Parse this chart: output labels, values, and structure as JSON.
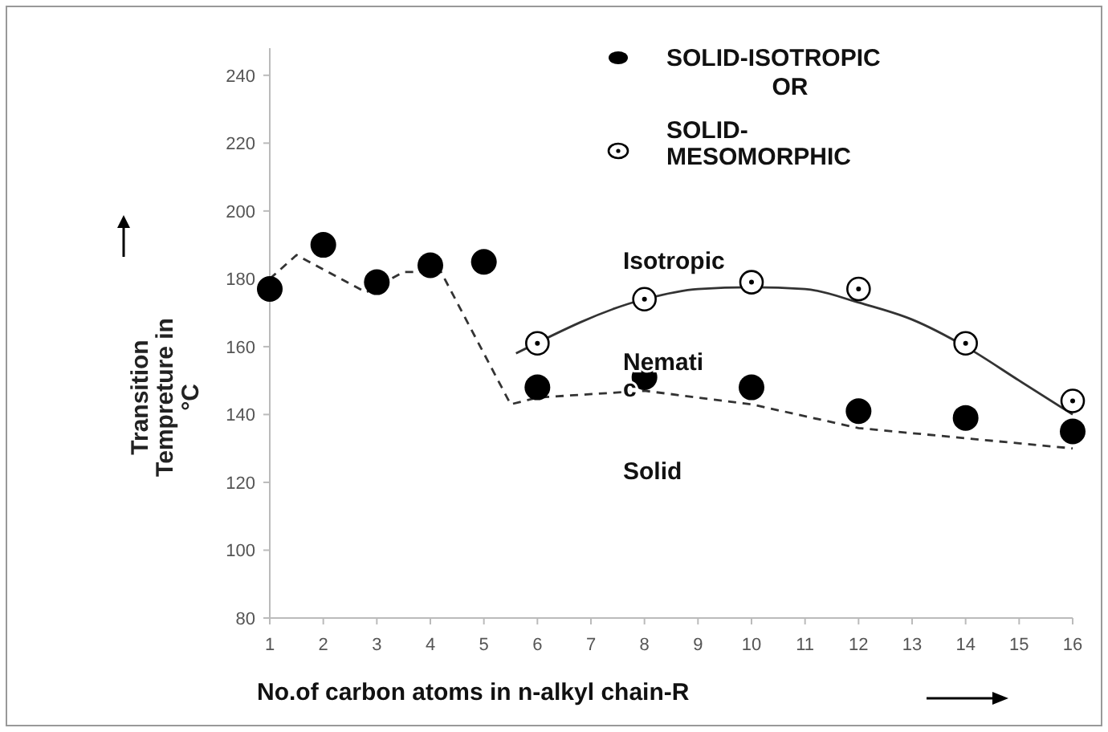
{
  "chart_data": {
    "type": "scatter",
    "xlabel": "No.of carbon atoms in n-alkyl chain-R",
    "ylabel": "Transition Tempreture in °C",
    "xlim": [
      1,
      16
    ],
    "xticks": [
      1,
      2,
      3,
      4,
      5,
      6,
      7,
      8,
      9,
      10,
      11,
      12,
      13,
      14,
      15,
      16
    ],
    "ylim": [
      80,
      248
    ],
    "yticks": [
      80,
      100,
      120,
      140,
      160,
      180,
      200,
      220,
      240
    ],
    "grid": false,
    "legend": "top right",
    "series": [
      {
        "name": "SOLID-ISOTROPIC",
        "marker": "circle",
        "color": "#000000",
        "x": [
          1,
          2,
          3,
          4,
          5,
          6,
          8,
          10,
          12,
          14,
          16
        ],
        "values": [
          177,
          190,
          179,
          184,
          185,
          148,
          151,
          148,
          141,
          139,
          135
        ]
      },
      {
        "name": "SOLID-MESOMORPHIC",
        "marker": "circle",
        "color": "#000000",
        "x": [
          6,
          8,
          10,
          12,
          14,
          16
        ],
        "values": [
          161,
          174,
          179,
          177,
          161,
          144
        ]
      },
      {
        "type": "line",
        "line_style": "dashed",
        "color": "#333333",
        "x": [
          1,
          1.5,
          2.8,
          3.5,
          4.2,
          5.5,
          6,
          8,
          10,
          12,
          14,
          16
        ],
        "values": [
          180,
          187,
          176,
          182,
          182,
          143,
          145,
          147,
          143,
          136,
          133,
          130
        ]
      },
      {
        "type": "line",
        "line_style": "solid",
        "color": "#333333",
        "x": [
          5.6,
          8,
          9,
          10,
          11,
          12,
          13,
          14,
          15,
          16
        ],
        "values": [
          158,
          174,
          177,
          177.5,
          177,
          173,
          168,
          160,
          150,
          140
        ]
      }
    ],
    "annotations": [
      "Isotropic",
      "Nemati\nc",
      "Solid",
      "OR"
    ]
  }
}
